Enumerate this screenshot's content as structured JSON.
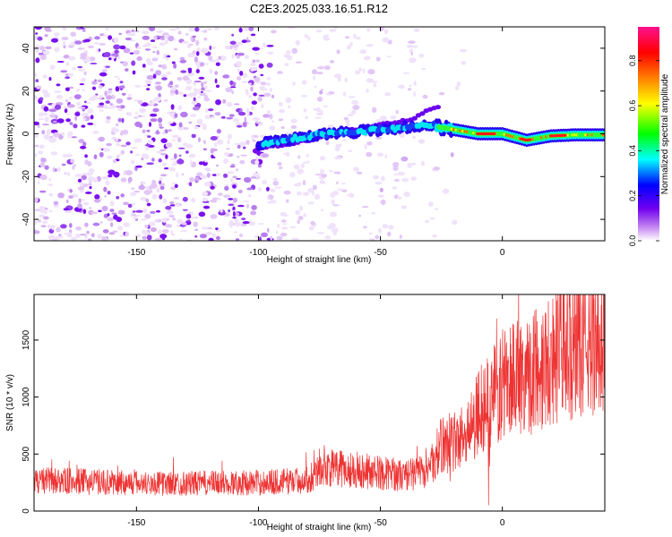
{
  "page_title": "C2E3.2025.033.16.51.R12",
  "chart_data": [
    {
      "type": "heatmap",
      "name": "spectrogram",
      "xlabel": "Height of straight line (km)",
      "ylabel": "Frequency (Hz)",
      "xlim": [
        -192,
        42
      ],
      "ylim": [
        -50,
        50
      ],
      "x_ticks": [
        -150,
        -100,
        -50,
        0
      ],
      "x_tick_labels": [
        "-150",
        "-100",
        "-50",
        "0"
      ],
      "y_ticks": [
        -40,
        -20,
        0,
        20,
        40
      ],
      "y_tick_labels": [
        "-40",
        "-20",
        "0",
        "20",
        "40"
      ],
      "colorbar": {
        "label": "Normalized spectral amplitude",
        "range": [
          0,
          0.95
        ],
        "ticks": [
          0,
          0.2,
          0.4,
          0.6,
          0.8
        ],
        "tick_labels": [
          "0.0",
          "0.2",
          "0.4",
          "0.6",
          "0.8"
        ],
        "colors": [
          "#ffffff",
          "#c88cf0",
          "#7000f0",
          "#0000ff",
          "#00ffff",
          "#00ff00",
          "#ffff00",
          "#ff8000",
          "#ff0000",
          "#ff1090"
        ]
      },
      "tones": [
        {
          "name": "main tone",
          "x": [
            -100,
            -90,
            -80,
            -70,
            -60,
            -50,
            -40,
            -30,
            -20,
            -10,
            0,
            10,
            20,
            30,
            42
          ],
          "y": [
            -5,
            -3,
            -1,
            0,
            1,
            2,
            3,
            4,
            2,
            0,
            0,
            -3,
            -1,
            -0.5,
            -0.5
          ]
        },
        {
          "name": "secondary tone",
          "x": [
            -100,
            -80,
            -60,
            -50,
            -40,
            -35,
            -30,
            -25
          ],
          "y": [
            -7,
            -3,
            2,
            4,
            6,
            8,
            11,
            13
          ]
        }
      ]
    },
    {
      "type": "line",
      "name": "snr",
      "xlabel": "Height of straight line (km)",
      "ylabel": "SNR (10 * v/v)",
      "xlim": [
        -192,
        42
      ],
      "ylim": [
        0,
        1900
      ],
      "x_ticks": [
        -150,
        -100,
        -50,
        0
      ],
      "x_tick_labels": [
        "-150",
        "-100",
        "-50",
        "0"
      ],
      "y_ticks": [
        0,
        500,
        1000,
        1500
      ],
      "y_tick_labels": [
        "0",
        "500",
        "1000",
        "1500"
      ],
      "color": "#ee3333",
      "trend": {
        "x": [
          -192,
          -140,
          -100,
          -80,
          -75,
          -60,
          -40,
          -30,
          -25,
          -20,
          -15,
          -10,
          -5,
          0,
          5,
          10,
          20,
          30,
          42
        ],
        "y": [
          270,
          240,
          250,
          270,
          380,
          360,
          310,
          360,
          580,
          600,
          700,
          880,
          950,
          1100,
          1200,
          1180,
          1350,
          1450,
          1520
        ]
      }
    }
  ]
}
